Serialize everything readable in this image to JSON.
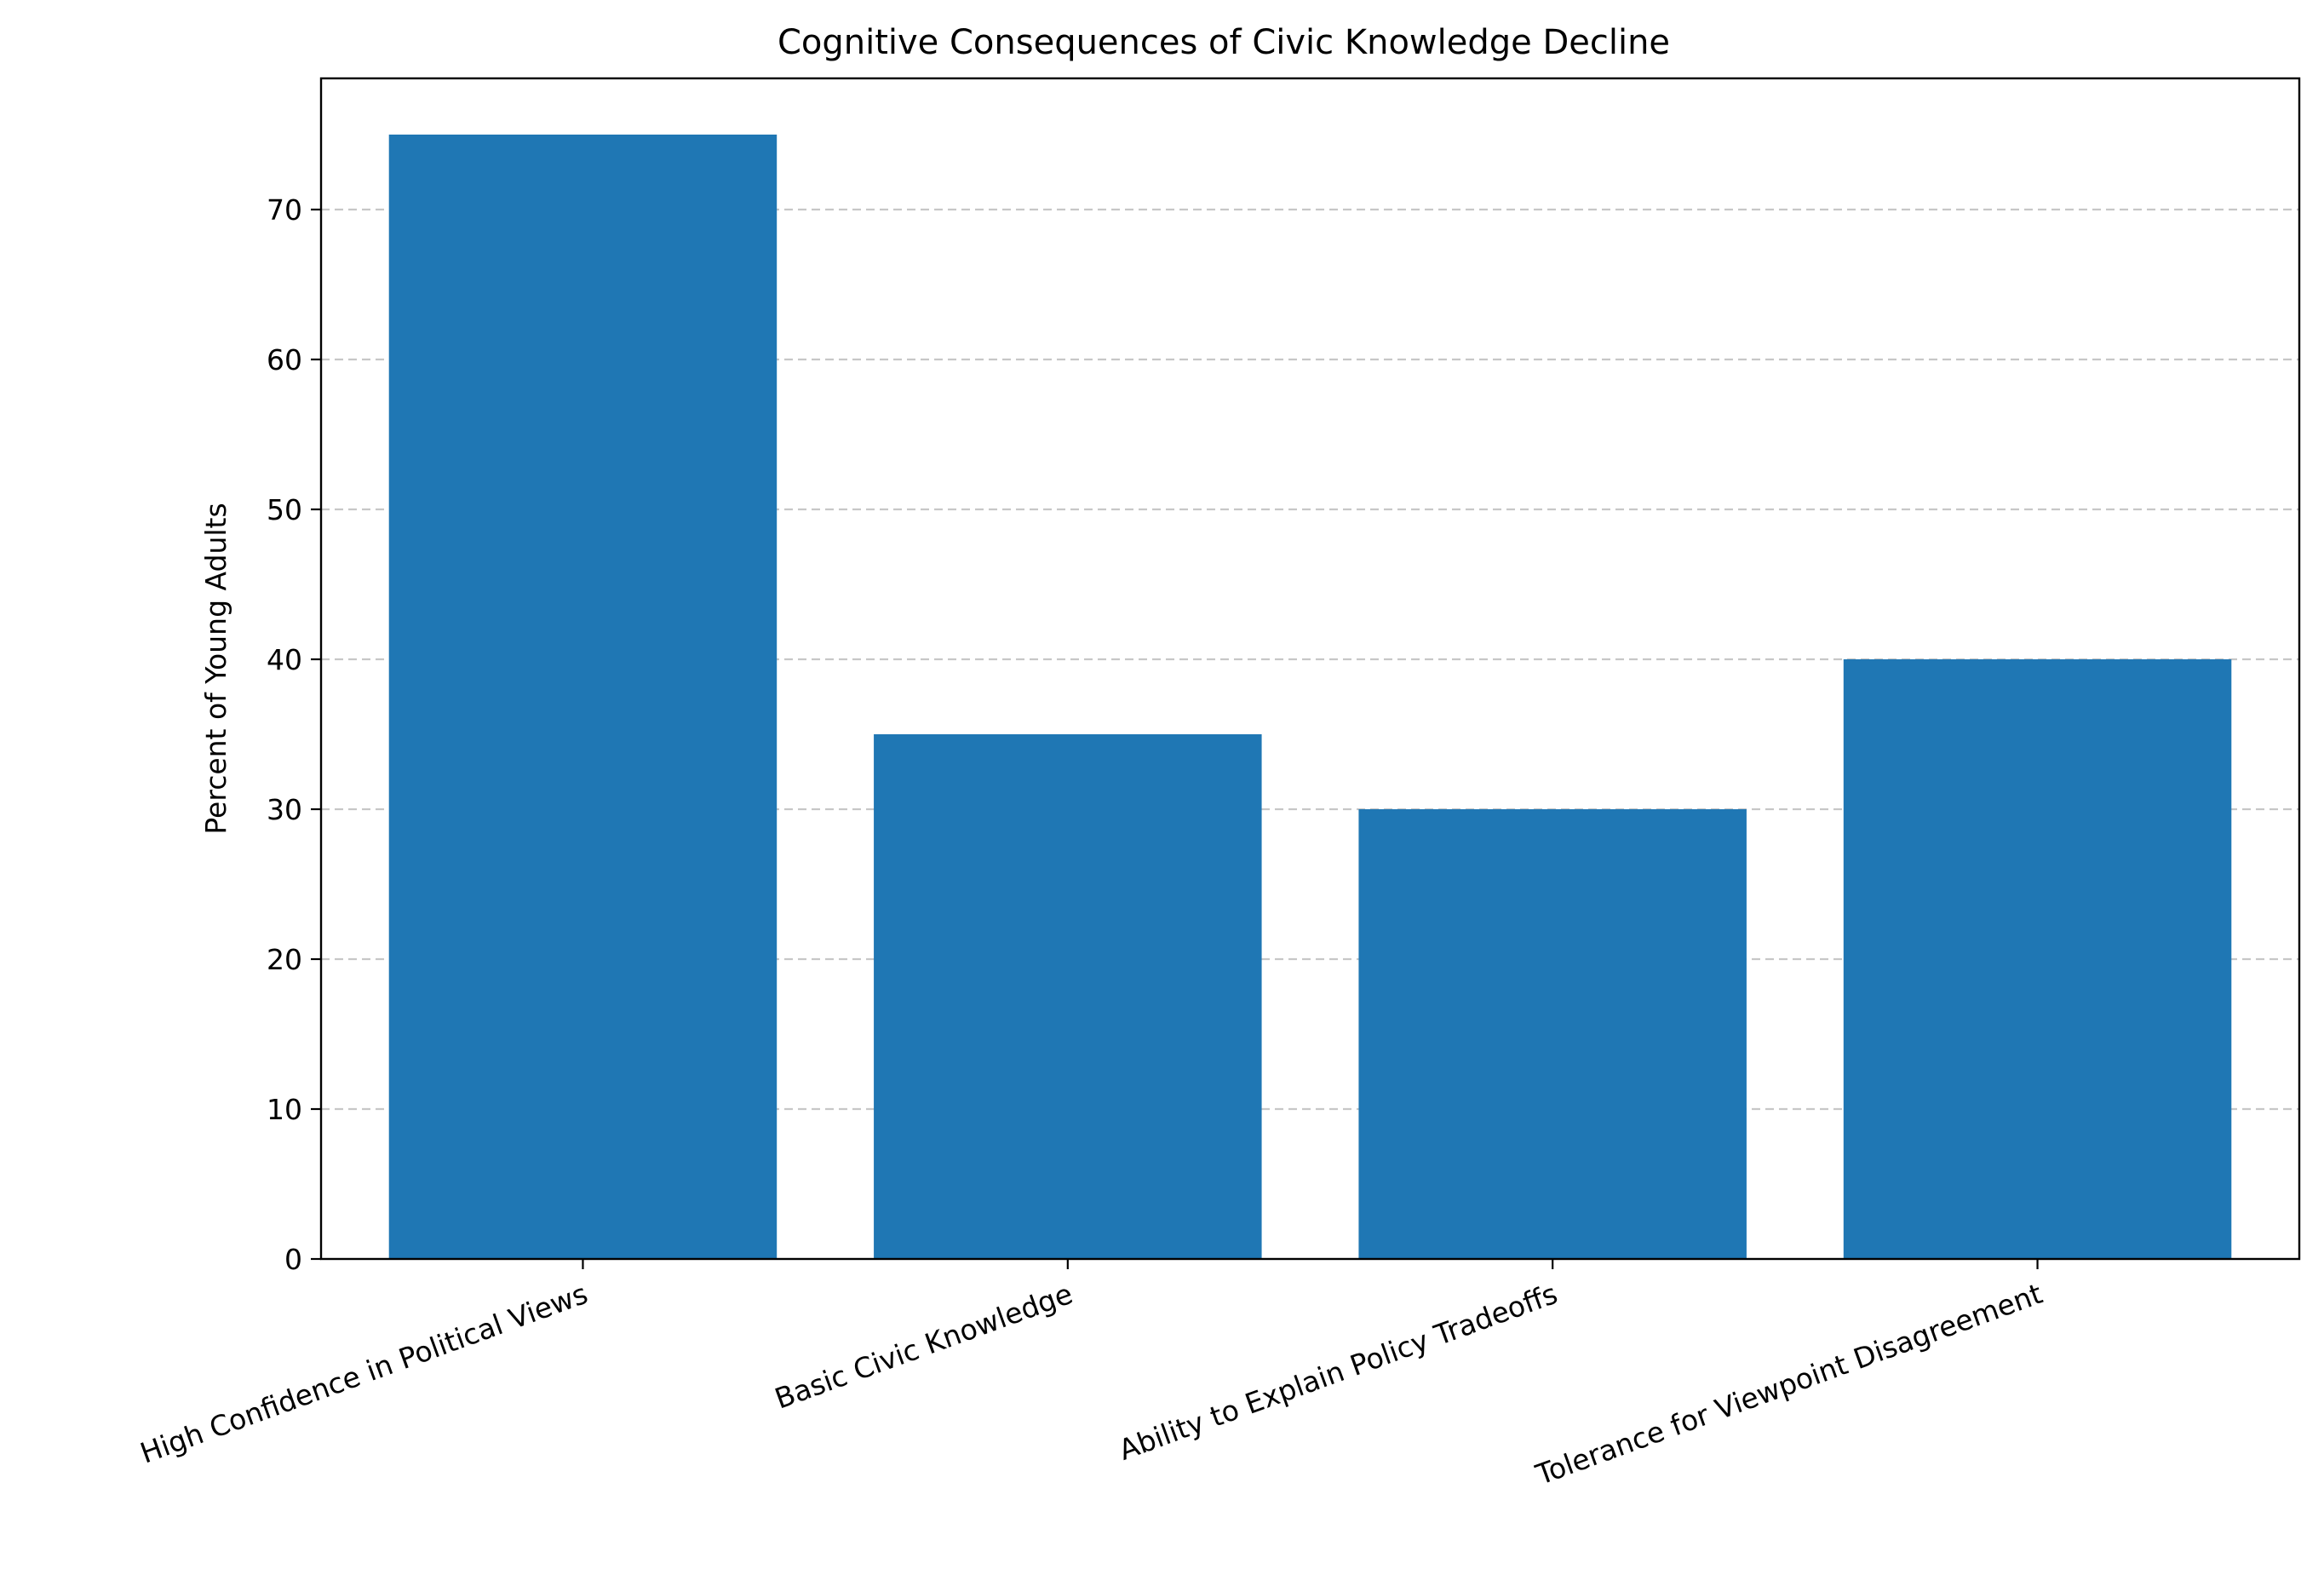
{
  "chart_data": {
    "type": "bar",
    "title": "Cognitive Consequences of Civic Knowledge Decline",
    "xlabel": "",
    "ylabel": "Percent of Young Adults",
    "categories": [
      "High Confidence in Political Views",
      "Basic Civic Knowledge",
      "Ability to Explain Policy Tradeoffs",
      "Tolerance for Viewpoint Disagreement"
    ],
    "values": [
      75,
      35,
      30,
      40
    ],
    "ylim": [
      0,
      78.75
    ],
    "yticks": [
      0,
      10,
      20,
      30,
      40,
      50,
      60,
      70
    ],
    "grid": "y-dashed",
    "bar_color": "#1f77b4",
    "legend": "none"
  }
}
